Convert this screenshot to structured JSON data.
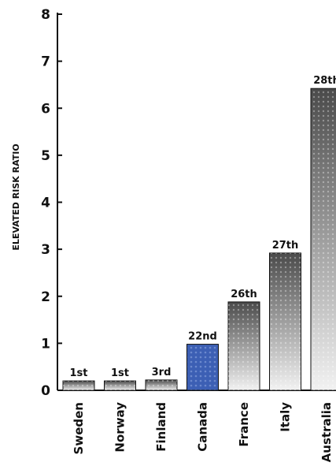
{
  "chart_data": {
    "type": "bar",
    "title": "",
    "xlabel": "",
    "ylabel": "ELEVATED RISK RATIO",
    "ylim": [
      0,
      8
    ],
    "yticks": [
      0,
      1,
      2,
      3,
      4,
      5,
      6,
      7,
      8
    ],
    "grid": false,
    "legend": "none",
    "categories": [
      "Sweden",
      "Norway",
      "Finland",
      "Canada",
      "France",
      "Italy",
      "Australia"
    ],
    "values": [
      0.2,
      0.2,
      0.22,
      0.98,
      1.88,
      2.92,
      6.42
    ],
    "rank_labels": [
      "1st",
      "1st",
      "3rd",
      "22nd",
      "26th",
      "27th",
      "28th"
    ],
    "highlight_category": "Canada",
    "colors": {
      "bar_top": "#4a4a4a",
      "bar_bottom": "#f2f2f2",
      "highlight": "#3c5fb4",
      "axis": "#111111"
    }
  }
}
